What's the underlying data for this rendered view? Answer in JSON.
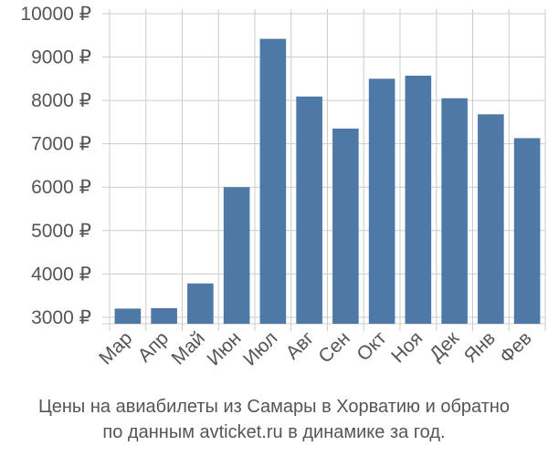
{
  "chart_data": {
    "type": "bar",
    "categories": [
      "Мар",
      "Апр",
      "Май",
      "Июн",
      "Июл",
      "Авг",
      "Сен",
      "Окт",
      "Ноя",
      "Дек",
      "Янв",
      "Фев"
    ],
    "values": [
      3200,
      3210,
      3780,
      6000,
      9420,
      8090,
      7350,
      8500,
      8570,
      8050,
      7680,
      7130
    ],
    "ylim": [
      2850,
      10000
    ],
    "yticks": [
      3000,
      4000,
      5000,
      6000,
      7000,
      8000,
      9000,
      10000
    ],
    "ytick_labels": [
      "3000 ₽",
      "4000 ₽",
      "5000 ₽",
      "6000 ₽",
      "7000 ₽",
      "8000 ₽",
      "9000 ₽",
      "10000 ₽"
    ],
    "grid": true,
    "bar_color": "#4e79a7",
    "grid_color": "#cccccc"
  },
  "caption": {
    "line1": "Цены на авиабилеты из Самары в Хорватию и обратно",
    "line2": "по данным avticket.ru в динамике за год."
  }
}
